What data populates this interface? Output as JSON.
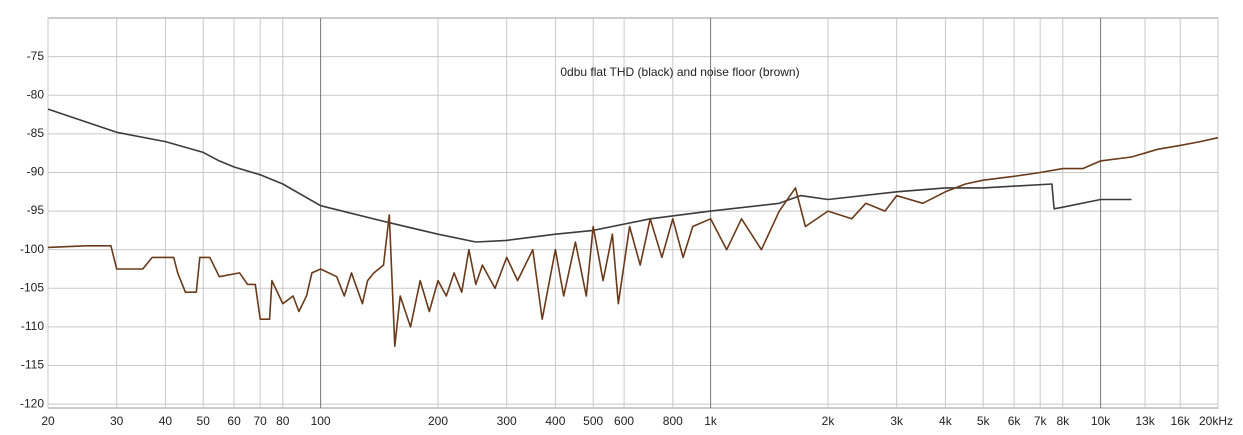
{
  "chart_data": {
    "type": "line",
    "title": "0dbu flat THD (black) and noise floor (brown)",
    "xscale": "log",
    "grid": true,
    "xlim": [
      20,
      20000
    ],
    "ylim": [
      -120.5,
      -70
    ],
    "xticks": [
      20,
      30,
      40,
      50,
      60,
      70,
      80,
      100,
      200,
      300,
      400,
      500,
      600,
      800,
      {
        "value": 1000,
        "label": "1k"
      },
      {
        "value": 2000,
        "label": "2k"
      },
      {
        "value": 3000,
        "label": "3k"
      },
      {
        "value": 4000,
        "label": "4k"
      },
      {
        "value": 5000,
        "label": "5k"
      },
      {
        "value": 6000,
        "label": "6k"
      },
      {
        "value": 7000,
        "label": "7k"
      },
      {
        "value": 8000,
        "label": "8k"
      },
      {
        "value": 10000,
        "label": "10k"
      },
      {
        "value": 13000,
        "label": "13k"
      },
      {
        "value": 16000,
        "label": "16k"
      },
      {
        "value": 20000,
        "label": "20kHz"
      }
    ],
    "yticks": [
      -75,
      -80,
      -85,
      -90,
      -95,
      -100,
      -105,
      -110,
      -115,
      -120
    ],
    "series": [
      {
        "color": "#3c3c3c",
        "x": [
          20,
          30,
          40,
          50,
          55,
          60,
          70,
          80,
          100,
          150,
          200,
          250,
          300,
          400,
          500,
          700,
          1000,
          1500,
          1700,
          2000,
          3000,
          4000,
          5000,
          7500,
          7600,
          8000,
          10000,
          12000
        ],
        "values": [
          -81.8,
          -84.8,
          -86,
          -87.4,
          -88.5,
          -89.3,
          -90.3,
          -91.5,
          -94.3,
          -96.5,
          -98,
          -99,
          -98.8,
          -98,
          -97.5,
          -96,
          -95,
          -94,
          -93,
          -93.5,
          -92.5,
          -92,
          -92,
          -91.5,
          -94.7,
          -94.5,
          -93.5,
          -93.5
        ]
      },
      {
        "color": "#6b3a1a",
        "x": [
          20,
          25,
          29,
          30,
          35,
          37,
          42,
          43,
          45,
          48,
          49,
          52,
          55,
          62,
          65,
          68,
          70,
          74,
          75,
          80,
          85,
          88,
          92,
          95,
          100,
          110,
          115,
          120,
          128,
          132,
          137,
          145,
          150,
          155,
          160,
          170,
          180,
          190,
          200,
          210,
          220,
          230,
          240,
          250,
          260,
          280,
          300,
          320,
          350,
          370,
          400,
          420,
          450,
          480,
          500,
          530,
          560,
          580,
          620,
          660,
          700,
          750,
          800,
          850,
          900,
          1000,
          1100,
          1200,
          1350,
          1500,
          1650,
          1750,
          2000,
          2300,
          2500,
          2800,
          3000,
          3500,
          4000,
          4500,
          5000,
          6000,
          7000,
          8000,
          9000,
          10000,
          12000,
          14000,
          16000,
          18000,
          20000
        ],
        "values": [
          -99.7,
          -99.5,
          -99.5,
          -102.5,
          -102.5,
          -101,
          -101,
          -103,
          -105.5,
          -105.5,
          -101,
          -101,
          -103.5,
          -103,
          -104.5,
          -104.5,
          -109,
          -109,
          -104,
          -107,
          -106,
          -108,
          -106,
          -103,
          -102.5,
          -103.5,
          -106,
          -103,
          -107,
          -104,
          -103,
          -102,
          -95.5,
          -112.5,
          -106,
          -110,
          -104,
          -108,
          -104,
          -106,
          -103,
          -105.5,
          -100,
          -104.5,
          -102,
          -105,
          -101,
          -104,
          -100,
          -109,
          -100,
          -106,
          -99,
          -106,
          -97,
          -104,
          -98,
          -107,
          -97,
          -102,
          -96,
          -101,
          -96,
          -101,
          -97,
          -96,
          -100,
          -96,
          -100,
          -95,
          -92,
          -97,
          -95,
          -96,
          -94,
          -95,
          -93,
          -94,
          -92.5,
          -91.5,
          -91,
          -90.5,
          -90,
          -89.5,
          -89.5,
          -88.5,
          -88,
          -87,
          -86.5,
          -86,
          -85.5
        ]
      }
    ]
  }
}
